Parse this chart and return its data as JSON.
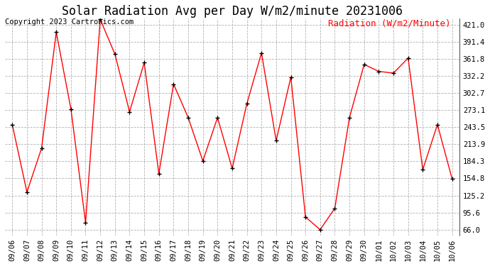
{
  "title": "Solar Radiation Avg per Day W/m2/minute 20231006",
  "copyright_text": "Copyright 2023 Cartronics.com",
  "legend_label": "Radiation (W/m2/Minute)",
  "dates": [
    "09/06",
    "09/07",
    "09/08",
    "09/09",
    "09/10",
    "09/11",
    "09/12",
    "09/13",
    "09/14",
    "09/15",
    "09/16",
    "09/17",
    "09/18",
    "09/19",
    "09/20",
    "09/21",
    "09/22",
    "09/23",
    "09/24",
    "09/25",
    "09/26",
    "09/27",
    "09/28",
    "09/29",
    "09/30",
    "10/01",
    "10/02",
    "10/03",
    "10/04",
    "10/05",
    "10/06"
  ],
  "values": [
    248.0,
    131.0,
    207.0,
    408.0,
    275.0,
    78.0,
    430.0,
    370.0,
    270.0,
    355.0,
    163.0,
    318.0,
    260.0,
    185.0,
    260.0,
    172.0,
    284.0,
    372.0,
    220.0,
    330.0,
    88.0,
    66.0,
    103.0,
    260.0,
    352.0,
    340.0,
    337.0,
    363.0,
    170.0,
    248.0,
    154.0
  ],
  "line_color": "red",
  "marker_color": "black",
  "bg_color": "white",
  "grid_color": "#aaaaaa",
  "yticks": [
    66.0,
    95.6,
    125.2,
    154.8,
    184.3,
    213.9,
    243.5,
    273.1,
    302.7,
    332.2,
    361.8,
    391.4,
    421.0
  ],
  "ymin": 56.0,
  "ymax": 431.0,
  "title_fontsize": 12,
  "copyright_fontsize": 7.5,
  "legend_fontsize": 9,
  "axis_fontsize": 7.5
}
